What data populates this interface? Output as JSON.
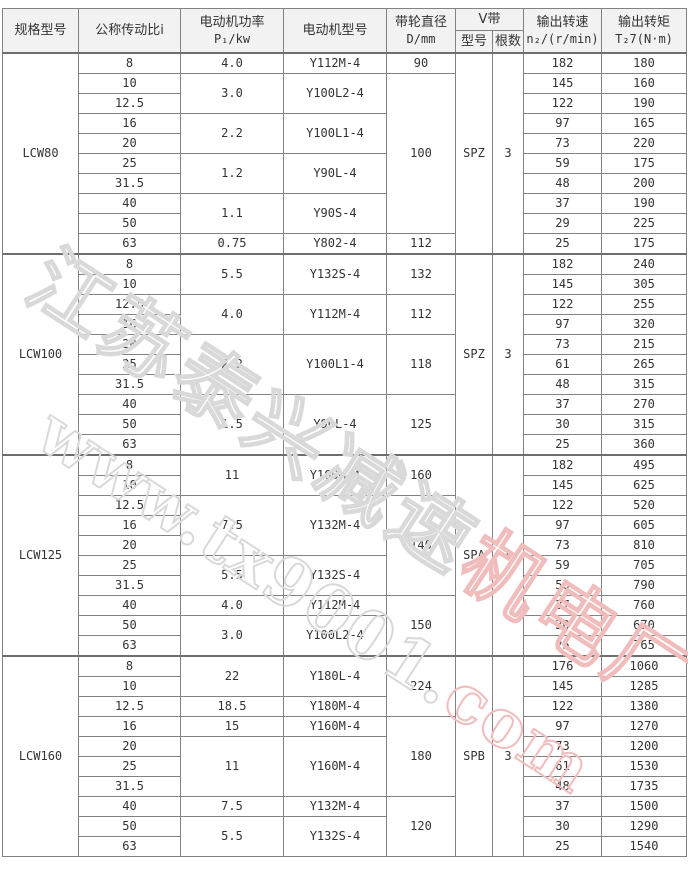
{
  "table": {
    "headers": {
      "model": "规格型号",
      "ratio": "公称传动比i",
      "power_line1": "电动机功率",
      "power_line2": "P₁/kw",
      "motor": "电动机型号",
      "pulley_line1": "带轮直径",
      "pulley_line2": "D/mm",
      "vbelt": "V带",
      "vbelt_type": "型号",
      "vbelt_count": "根数",
      "speed_line1": "输出转速",
      "speed_line2": "n₂/(r/min)",
      "torque_line1": "输出转矩",
      "torque_line2": "T₂7(N·m)"
    },
    "sections": [
      {
        "model": "LCW80",
        "belt_type": "SPZ",
        "belt_count": "3",
        "ratios": [
          "8",
          "10",
          "12.5",
          "16",
          "20",
          "25",
          "31.5",
          "40",
          "50",
          "63"
        ],
        "speeds": [
          "182",
          "145",
          "122",
          "97",
          "73",
          "59",
          "48",
          "37",
          "29",
          "25"
        ],
        "torques": [
          "180",
          "160",
          "190",
          "165",
          "220",
          "175",
          "200",
          "190",
          "225",
          "175"
        ],
        "power_groups": [
          {
            "value": "4.0",
            "span": 1
          },
          {
            "value": "3.0",
            "span": 2
          },
          {
            "value": "2.2",
            "span": 2
          },
          {
            "value": "1.2",
            "span": 2
          },
          {
            "value": "1.1",
            "span": 2
          },
          {
            "value": "0.75",
            "span": 1
          }
        ],
        "motor_groups": [
          {
            "value": "Y112M-4",
            "span": 1
          },
          {
            "value": "Y100L2-4",
            "span": 2
          },
          {
            "value": "Y100L1-4",
            "span": 2
          },
          {
            "value": "Y90L-4",
            "span": 2
          },
          {
            "value": "Y90S-4",
            "span": 2
          },
          {
            "value": "Y802-4",
            "span": 1
          }
        ],
        "pulley_groups": [
          {
            "value": "90",
            "span": 1
          },
          {
            "value": "100",
            "span": 8
          },
          {
            "value": "112",
            "span": 1
          }
        ]
      },
      {
        "model": "LCW100",
        "belt_type": "SPZ",
        "belt_count": "3",
        "ratios": [
          "8",
          "10",
          "12.5",
          "16",
          "20",
          "25",
          "31.5",
          "40",
          "50",
          "63"
        ],
        "speeds": [
          "182",
          "145",
          "122",
          "97",
          "73",
          "61",
          "48",
          "37",
          "30",
          "25"
        ],
        "torques": [
          "240",
          "305",
          "255",
          "320",
          "215",
          "265",
          "315",
          "270",
          "315",
          "360"
        ],
        "power_groups": [
          {
            "value": "5.5",
            "span": 2
          },
          {
            "value": "4.0",
            "span": 2
          },
          {
            "value": "2.2",
            "span": 3
          },
          {
            "value": "1.5",
            "span": 3
          }
        ],
        "motor_groups": [
          {
            "value": "Y132S-4",
            "span": 2
          },
          {
            "value": "Y112M-4",
            "span": 2
          },
          {
            "value": "Y100L1-4",
            "span": 3
          },
          {
            "value": "Y90L-4",
            "span": 3
          }
        ],
        "pulley_groups": [
          {
            "value": "132",
            "span": 2
          },
          {
            "value": "112",
            "span": 2
          },
          {
            "value": "118",
            "span": 3
          },
          {
            "value": "125",
            "span": 3
          }
        ]
      },
      {
        "model": "LCW125",
        "belt_type": "SPA",
        "belt_count": "3",
        "ratios": [
          "8",
          "10",
          "12.5",
          "16",
          "20",
          "25",
          "31.5",
          "40",
          "50",
          "63"
        ],
        "speeds": [
          "182",
          "145",
          "122",
          "97",
          "73",
          "59",
          "50",
          "37",
          "30",
          "25"
        ],
        "torques": [
          "495",
          "625",
          "520",
          "605",
          "810",
          "705",
          "790",
          "760",
          "670",
          "765"
        ],
        "power_groups": [
          {
            "value": "11",
            "span": 2
          },
          {
            "value": "7.5",
            "span": 3
          },
          {
            "value": "5.5",
            "span": 2
          },
          {
            "value": "4.0",
            "span": 1
          },
          {
            "value": "3.0",
            "span": 2
          }
        ],
        "motor_groups": [
          {
            "value": "Y160M-4",
            "span": 2
          },
          {
            "value": "Y132M-4",
            "span": 3
          },
          {
            "value": "Y132S-4",
            "span": 2
          },
          {
            "value": "Y112M-4",
            "span": 1
          },
          {
            "value": "Y100L2-4",
            "span": 2
          }
        ],
        "pulley_groups": [
          {
            "value": "160",
            "span": 2
          },
          {
            "value": "140",
            "span": 5
          },
          {
            "value": "150",
            "span": 3
          }
        ]
      },
      {
        "model": "LCW160",
        "belt_type": "SPB",
        "belt_count": "3",
        "ratios": [
          "8",
          "10",
          "12.5",
          "16",
          "20",
          "25",
          "31.5",
          "40",
          "50",
          "63"
        ],
        "speeds": [
          "176",
          "145",
          "122",
          "97",
          "73",
          "61",
          "48",
          "37",
          "30",
          "25"
        ],
        "torques": [
          "1060",
          "1285",
          "1380",
          "1270",
          "1200",
          "1530",
          "1735",
          "1500",
          "1290",
          "1540"
        ],
        "power_groups": [
          {
            "value": "22",
            "span": 2
          },
          {
            "value": "18.5",
            "span": 1
          },
          {
            "value": "15",
            "span": 1
          },
          {
            "value": "11",
            "span": 3
          },
          {
            "value": "7.5",
            "span": 1
          },
          {
            "value": "5.5",
            "span": 2
          }
        ],
        "motor_groups": [
          {
            "value": "Y180L-4",
            "span": 2
          },
          {
            "value": "Y180M-4",
            "span": 1
          },
          {
            "value": "Y160M-4",
            "span": 1
          },
          {
            "value": "Y160M-4",
            "span": 3
          },
          {
            "value": "Y132M-4",
            "span": 1
          },
          {
            "value": "Y132S-4",
            "span": 2
          }
        ],
        "pulley_groups": [
          {
            "value": "224",
            "span": 3
          },
          {
            "value": "180",
            "span": 4
          },
          {
            "value": "120",
            "span": 3
          }
        ]
      }
    ]
  },
  "watermark": {
    "line1_gray": "江苏泰兴减速",
    "line1_pink": "机电厂",
    "line2_gray": "www.tx9001.",
    "line2_pink": "com",
    "gray_color": "#d9d9d9",
    "pink_color": "#f0bcbc"
  },
  "colors": {
    "border": "#828282",
    "section_border": "#6e6e6e",
    "header_bg": "#f2f2f2",
    "text": "#333333",
    "background": "#ffffff"
  }
}
